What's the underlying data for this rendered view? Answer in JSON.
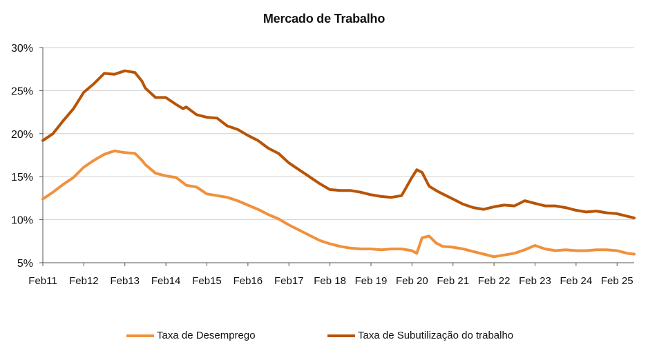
{
  "chart_data": {
    "type": "line",
    "title": "Mercado de Trabalho",
    "x_tick_labels": [
      "Feb11",
      "Feb12",
      "Feb13",
      "Feb14",
      "Feb15",
      "Feb16",
      "Feb17",
      "Feb 18",
      "Feb 19",
      "Feb 20",
      "Feb 21",
      "Feb 22",
      "Feb 23",
      "Feb 24",
      "Feb 25"
    ],
    "y_tick_labels": [
      "5%",
      "10%",
      "15%",
      "20%",
      "25%",
      "30%"
    ],
    "y_ticks": [
      5,
      10,
      15,
      20,
      25,
      30
    ],
    "ylim": [
      5,
      30
    ],
    "x_range": [
      2011.083,
      2025.5
    ],
    "grid": true,
    "legend_position": "bottom",
    "series": [
      {
        "name": "Taxa de Desemprego",
        "color": "#F0913D",
        "x": [
          2011.083,
          2011.33,
          2011.58,
          2011.83,
          2012.08,
          2012.33,
          2012.58,
          2012.83,
          2013.08,
          2013.33,
          2013.5,
          2013.58,
          2013.83,
          2014.08,
          2014.33,
          2014.5,
          2014.58,
          2014.83,
          2015.08,
          2015.33,
          2015.58,
          2015.83,
          2016.08,
          2016.33,
          2016.58,
          2016.83,
          2017.08,
          2017.33,
          2017.58,
          2017.83,
          2018.08,
          2018.33,
          2018.58,
          2018.83,
          2019.08,
          2019.33,
          2019.58,
          2019.83,
          2020.08,
          2020.2,
          2020.33,
          2020.5,
          2020.67,
          2020.83,
          2021.08,
          2021.33,
          2021.58,
          2021.83,
          2022.08,
          2022.33,
          2022.58,
          2022.83,
          2023.08,
          2023.33,
          2023.58,
          2023.83,
          2024.08,
          2024.33,
          2024.58,
          2024.83,
          2025.08,
          2025.33,
          2025.5
        ],
        "values": [
          12.4,
          13.2,
          14.1,
          14.9,
          16.1,
          16.9,
          17.6,
          18.0,
          17.8,
          17.7,
          16.9,
          16.4,
          15.4,
          15.1,
          14.9,
          14.3,
          14.0,
          13.8,
          13.0,
          12.8,
          12.6,
          12.2,
          11.7,
          11.2,
          10.6,
          10.1,
          9.4,
          8.8,
          8.2,
          7.6,
          7.2,
          6.9,
          6.7,
          6.6,
          6.6,
          6.5,
          6.6,
          6.6,
          6.4,
          6.1,
          7.9,
          8.1,
          7.3,
          6.9,
          6.8,
          6.6,
          6.3,
          6.0,
          5.7,
          5.9,
          6.1,
          6.5,
          7.0,
          6.6,
          6.4,
          6.5,
          6.4,
          6.4,
          6.5,
          6.5,
          6.4,
          6.1,
          6.0
        ]
      },
      {
        "name": "Taxa de Subutilização do trabalho",
        "color": "#B85406",
        "x": [
          2011.083,
          2011.33,
          2011.58,
          2011.83,
          2012.08,
          2012.33,
          2012.58,
          2012.83,
          2013.08,
          2013.33,
          2013.5,
          2013.58,
          2013.83,
          2014.08,
          2014.33,
          2014.5,
          2014.58,
          2014.83,
          2015.08,
          2015.33,
          2015.58,
          2015.83,
          2016.08,
          2016.33,
          2016.58,
          2016.83,
          2017.08,
          2017.33,
          2017.58,
          2017.83,
          2018.08,
          2018.33,
          2018.58,
          2018.83,
          2019.08,
          2019.33,
          2019.58,
          2019.83,
          2020.08,
          2020.2,
          2020.33,
          2020.5,
          2020.67,
          2020.83,
          2021.08,
          2021.33,
          2021.58,
          2021.83,
          2022.08,
          2022.33,
          2022.58,
          2022.83,
          2023.08,
          2023.33,
          2023.58,
          2023.83,
          2024.08,
          2024.33,
          2024.58,
          2024.83,
          2025.08,
          2025.33,
          2025.5
        ],
        "values": [
          19.2,
          20.0,
          21.5,
          22.9,
          24.8,
          25.8,
          27.0,
          26.9,
          27.3,
          27.1,
          26.1,
          25.3,
          24.2,
          24.2,
          23.4,
          22.9,
          23.1,
          22.2,
          21.9,
          21.8,
          20.9,
          20.5,
          19.8,
          19.2,
          18.3,
          17.7,
          16.6,
          15.8,
          15.0,
          14.2,
          13.5,
          13.4,
          13.4,
          13.2,
          12.9,
          12.7,
          12.6,
          12.8,
          14.9,
          15.8,
          15.5,
          13.9,
          13.4,
          13.0,
          12.4,
          11.8,
          11.4,
          11.2,
          11.5,
          11.7,
          11.6,
          12.2,
          11.9,
          11.6,
          11.6,
          11.4,
          11.1,
          10.9,
          11.0,
          10.8,
          10.7,
          10.4,
          10.2
        ]
      }
    ]
  }
}
